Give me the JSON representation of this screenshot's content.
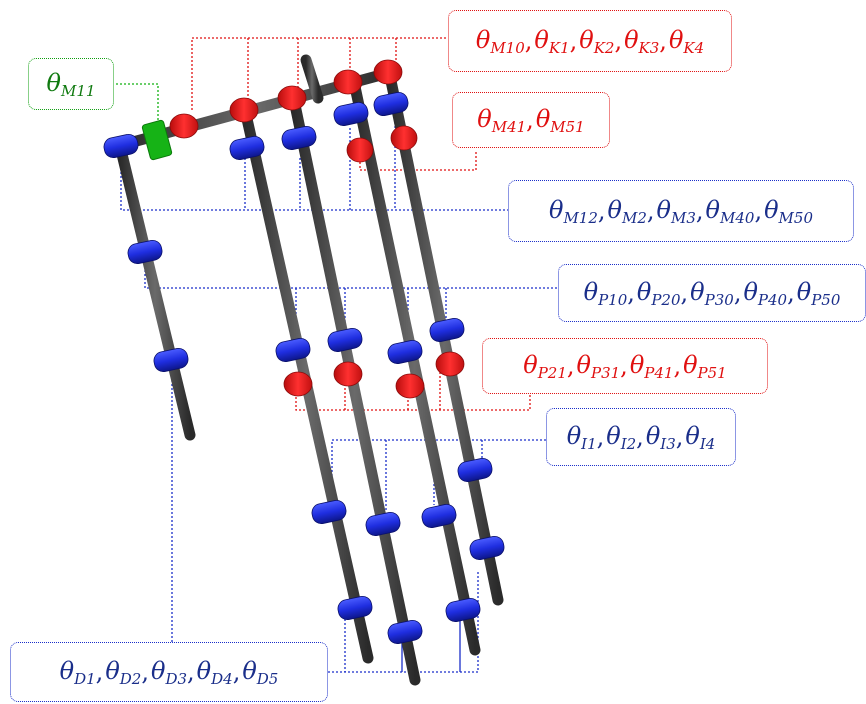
{
  "colors": {
    "bone": "#3a3a3a",
    "blue_joint": "#1f2ee0",
    "red_joint": "#ee1e1e",
    "green_joint": "#16b316",
    "red_label": "#e01010",
    "blue_label": "#1a2e8a",
    "green_label": "#107a10"
  },
  "labels": {
    "m11": {
      "symbol": "θ",
      "subs": [
        "M11"
      ]
    },
    "mk": {
      "symbol": "θ",
      "subs": [
        "M10",
        "K1",
        "K2",
        "K3",
        "K4"
      ]
    },
    "m41": {
      "symbol": "θ",
      "subs": [
        "M41",
        "M51"
      ]
    },
    "m12": {
      "symbol": "θ",
      "subs": [
        "M12",
        "M2",
        "M3",
        "M40",
        "M50"
      ]
    },
    "p10": {
      "symbol": "θ",
      "subs": [
        "P10",
        "P20",
        "P30",
        "P40",
        "P50"
      ]
    },
    "p21": {
      "symbol": "θ",
      "subs": [
        "P21",
        "P31",
        "P41",
        "P51"
      ]
    },
    "i": {
      "symbol": "θ",
      "subs": [
        "I1",
        "I2",
        "I3",
        "I4"
      ]
    },
    "d": {
      "symbol": "θ",
      "subs": [
        "D1",
        "D2",
        "D3",
        "D4",
        "D5"
      ]
    }
  }
}
